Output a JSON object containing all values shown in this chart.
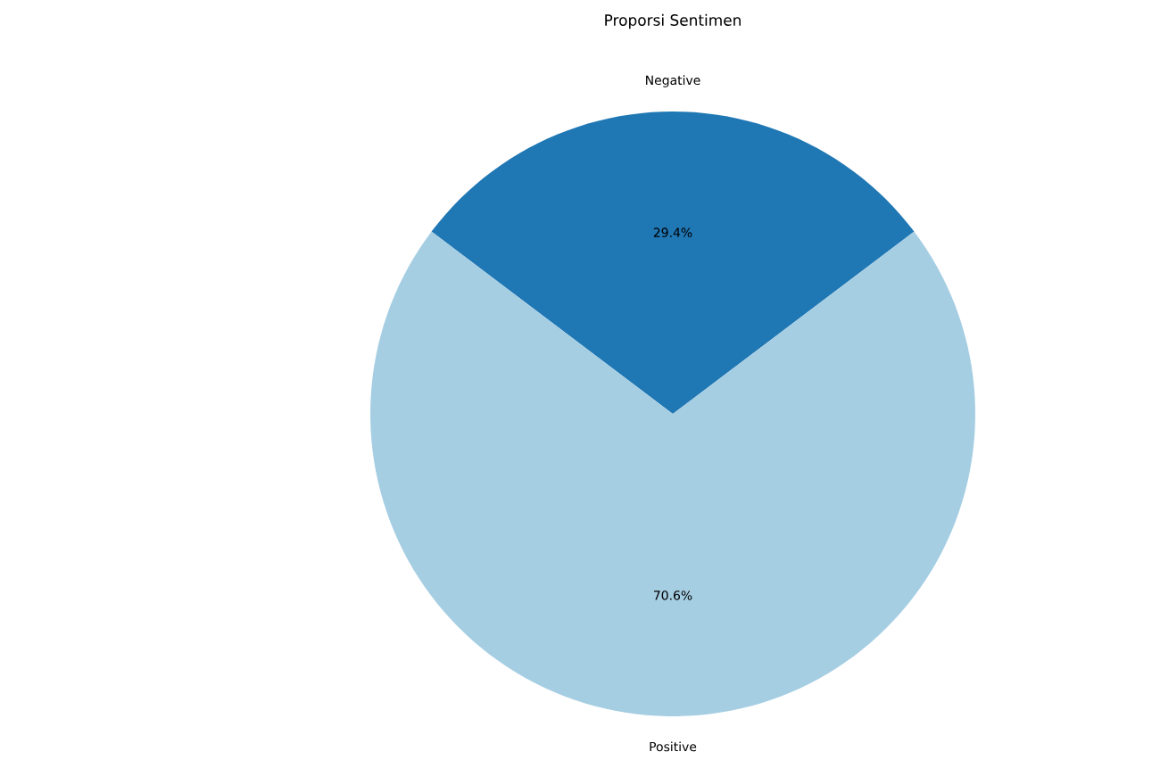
{
  "chart_data": {
    "type": "pie",
    "title": "Proporsi Sentimen",
    "categories": [
      "Negative",
      "Positive"
    ],
    "values": [
      29.4,
      70.6
    ],
    "value_labels": [
      "29.4%",
      "70.6%"
    ],
    "colors": [
      "#1f77b4",
      "#a6cee3"
    ]
  }
}
